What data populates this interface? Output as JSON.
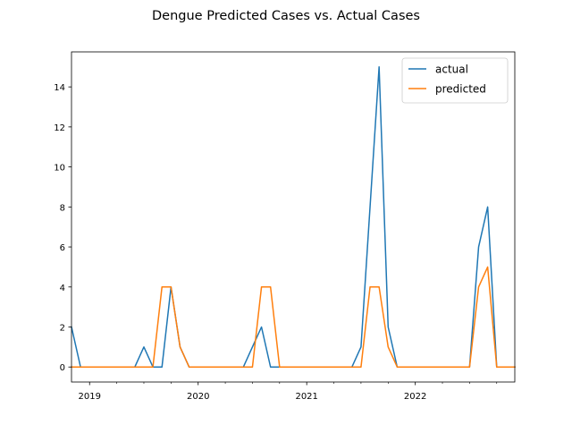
{
  "chart_data": {
    "type": "line",
    "title": "Dengue Predicted Cases vs. Actual Cases",
    "xlabel": "",
    "ylabel": "",
    "x": [
      "2018-11",
      "2018-12",
      "2019-01",
      "2019-02",
      "2019-03",
      "2019-04",
      "2019-05",
      "2019-06",
      "2019-07",
      "2019-08",
      "2019-09",
      "2019-10",
      "2019-11",
      "2019-12",
      "2020-01",
      "2020-02",
      "2020-03",
      "2020-04",
      "2020-05",
      "2020-06",
      "2020-07",
      "2020-08",
      "2020-09",
      "2020-10",
      "2020-11",
      "2020-12",
      "2021-01",
      "2021-02",
      "2021-03",
      "2021-04",
      "2021-05",
      "2021-06",
      "2021-07",
      "2021-08",
      "2021-09",
      "2021-10",
      "2021-11",
      "2021-12",
      "2022-01",
      "2022-02",
      "2022-03",
      "2022-04",
      "2022-05",
      "2022-06",
      "2022-07",
      "2022-08",
      "2022-09",
      "2022-10",
      "2022-11",
      "2022-12"
    ],
    "xlim": [
      "2018-11",
      "2022-12"
    ],
    "ylim": [
      -0.75,
      15.75
    ],
    "x_ticks": [
      {
        "date": "2019-01",
        "label": "2019"
      },
      {
        "date": "2020-01",
        "label": "2020"
      },
      {
        "date": "2021-01",
        "label": "2021"
      },
      {
        "date": "2022-01",
        "label": "2022"
      }
    ],
    "x_minor_ticks": [
      "2019-04",
      "2019-07",
      "2019-10",
      "2020-04",
      "2020-07",
      "2020-10",
      "2021-04",
      "2021-07",
      "2021-10",
      "2022-04",
      "2022-07",
      "2022-10"
    ],
    "y_ticks": [
      0,
      2,
      4,
      6,
      8,
      10,
      12,
      14
    ],
    "grid": false,
    "legend": "top-right",
    "series": [
      {
        "name": "actual",
        "color": "#1f77b4",
        "values": [
          2,
          0,
          0,
          0,
          0,
          0,
          0,
          0,
          1,
          0,
          0,
          4,
          1,
          0,
          0,
          0,
          0,
          0,
          0,
          0,
          1,
          2,
          0,
          0,
          0,
          0,
          0,
          0,
          0,
          0,
          0,
          0,
          1,
          8,
          15,
          2,
          0,
          0,
          0,
          0,
          0,
          0,
          0,
          0,
          0,
          6,
          8,
          0,
          0,
          0
        ]
      },
      {
        "name": "predicted",
        "color": "#ff7f0e",
        "values": [
          0,
          0,
          0,
          0,
          0,
          0,
          0,
          0,
          0,
          0,
          4,
          4,
          1,
          0,
          0,
          0,
          0,
          0,
          0,
          0,
          0,
          4,
          4,
          0,
          0,
          0,
          0,
          0,
          0,
          0,
          0,
          0,
          0,
          4,
          4,
          1,
          0,
          0,
          0,
          0,
          0,
          0,
          0,
          0,
          0,
          4,
          5,
          0,
          0,
          0
        ]
      }
    ]
  }
}
